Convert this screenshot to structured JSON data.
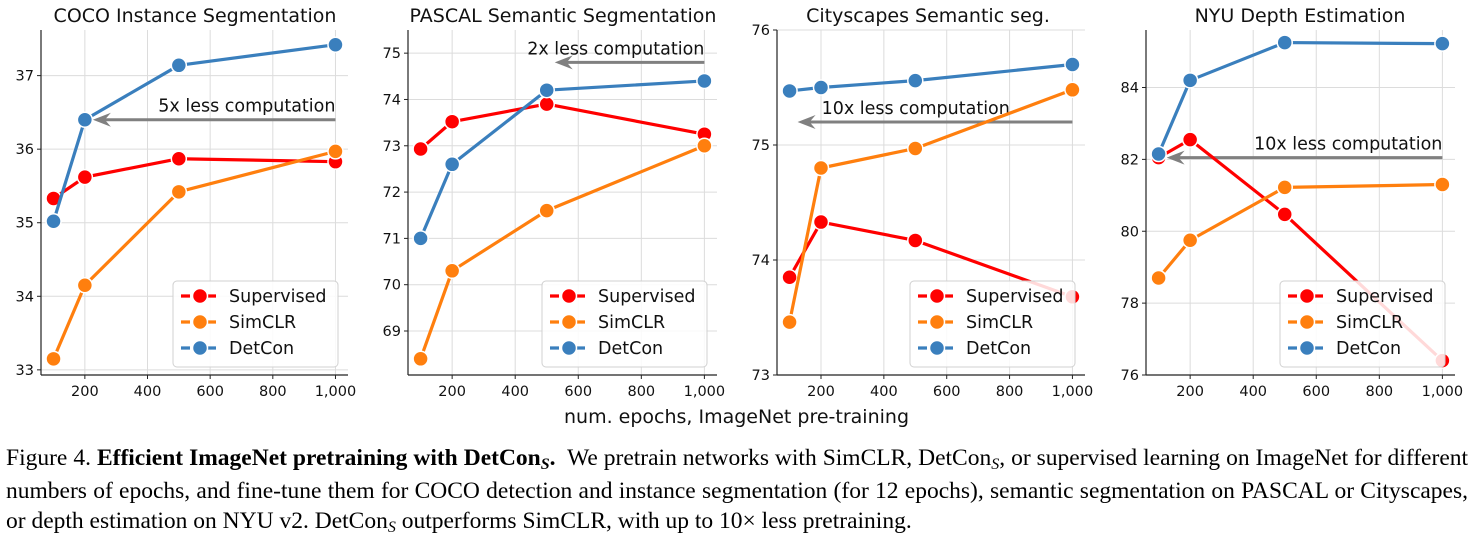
{
  "chart_data": [
    {
      "type": "line",
      "title": "COCO Instance Segmentation",
      "xlabel": "",
      "ylabel": "",
      "x": [
        100,
        200,
        500,
        1000
      ],
      "xticks": [
        200,
        400,
        600,
        800,
        1000
      ],
      "xtick_labels": [
        "200",
        "400",
        "600",
        "800",
        "1,000"
      ],
      "xlim": [
        60,
        1040
      ],
      "ylim": [
        32.93,
        37.62
      ],
      "yticks": [
        33,
        34,
        35,
        36,
        37
      ],
      "ytick_labels": [
        "33",
        "34",
        "35",
        "36",
        "37"
      ],
      "grid": true,
      "legend": "bottom-right",
      "series": [
        {
          "name": "Supervised",
          "color": "#ff0000",
          "values": [
            35.33,
            35.62,
            35.87,
            35.83
          ]
        },
        {
          "name": "SimCLR",
          "color": "#ff7f0e",
          "values": [
            33.15,
            34.15,
            35.42,
            35.97
          ]
        },
        {
          "name": "DetCon",
          "color": "#3a7fbd",
          "values": [
            35.02,
            36.4,
            37.14,
            37.42
          ]
        }
      ],
      "annotation": {
        "text": "5x less computation",
        "arrow_from": [
          1000,
          36.4
        ],
        "arrow_to": [
          200,
          36.4
        ]
      }
    },
    {
      "type": "line",
      "title": "PASCAL Semantic Segmentation",
      "xlabel": "",
      "ylabel": "",
      "x": [
        100,
        200,
        500,
        1000
      ],
      "xticks": [
        200,
        400,
        600,
        800,
        1000
      ],
      "xtick_labels": [
        "200",
        "400",
        "600",
        "800",
        "1,000"
      ],
      "xlim": [
        60,
        1040
      ],
      "ylim": [
        68.05,
        75.5
      ],
      "yticks": [
        69,
        70,
        71,
        72,
        73,
        74,
        75
      ],
      "ytick_labels": [
        "69",
        "70",
        "71",
        "72",
        "73",
        "74",
        "75"
      ],
      "grid": true,
      "legend": "bottom-right",
      "series": [
        {
          "name": "Supervised",
          "color": "#ff0000",
          "values": [
            72.93,
            73.52,
            73.9,
            73.25
          ]
        },
        {
          "name": "SimCLR",
          "color": "#ff7f0e",
          "values": [
            68.4,
            70.3,
            71.6,
            73.0
          ]
        },
        {
          "name": "DetCon",
          "color": "#3a7fbd",
          "values": [
            71.0,
            72.6,
            74.2,
            74.4
          ]
        }
      ],
      "annotation": {
        "text": "2x less computation",
        "arrow_from": [
          1000,
          74.8
        ],
        "arrow_to": [
          500,
          74.8
        ]
      }
    },
    {
      "type": "line",
      "title": "Cityscapes Semantic seg.",
      "xlabel": "",
      "ylabel": "",
      "x": [
        100,
        200,
        500,
        1000
      ],
      "xticks": [
        200,
        400,
        600,
        800,
        1000
      ],
      "xtick_labels": [
        "200",
        "400",
        "600",
        "800",
        "1,000"
      ],
      "xlim": [
        60,
        1040
      ],
      "ylim": [
        73,
        76
      ],
      "yticks": [
        73,
        74,
        75,
        76
      ],
      "ytick_labels": [
        "73",
        "74",
        "75",
        "76"
      ],
      "grid": true,
      "legend": "bottom-right",
      "series": [
        {
          "name": "Supervised",
          "color": "#ff0000",
          "values": [
            73.85,
            74.33,
            74.17,
            73.68
          ]
        },
        {
          "name": "SimCLR",
          "color": "#ff7f0e",
          "values": [
            73.46,
            74.8,
            74.97,
            75.48
          ]
        },
        {
          "name": "DetCon",
          "color": "#3a7fbd",
          "values": [
            75.47,
            75.5,
            75.56,
            75.7
          ]
        }
      ],
      "annotation": {
        "text": "10x less computation",
        "arrow_from": [
          1000,
          75.2
        ],
        "arrow_to": [
          100,
          75.2
        ]
      }
    },
    {
      "type": "line",
      "title": "NYU Depth Estimation",
      "xlabel": "",
      "ylabel": "",
      "x": [
        100,
        200,
        500,
        1000
      ],
      "xticks": [
        200,
        400,
        600,
        800,
        1000
      ],
      "xtick_labels": [
        "200",
        "400",
        "600",
        "800",
        "1,000"
      ],
      "xlim": [
        60,
        1040
      ],
      "ylim": [
        76,
        85.6
      ],
      "yticks": [
        76,
        78,
        80,
        82,
        84
      ],
      "ytick_labels": [
        "76",
        "78",
        "80",
        "82",
        "84"
      ],
      "grid": true,
      "legend": "bottom-right",
      "series": [
        {
          "name": "Supervised",
          "color": "#ff0000",
          "values": [
            82.05,
            82.55,
            80.47,
            76.4
          ]
        },
        {
          "name": "SimCLR",
          "color": "#ff7f0e",
          "values": [
            78.7,
            79.75,
            81.22,
            81.3
          ]
        },
        {
          "name": "DetCon",
          "color": "#3a7fbd",
          "values": [
            82.15,
            84.2,
            85.25,
            85.22
          ]
        }
      ],
      "annotation": {
        "text": "10x less computation",
        "arrow_from": [
          1000,
          82.05
        ],
        "arrow_to": [
          100,
          82.05
        ]
      }
    }
  ],
  "figure": {
    "common_xlabel": "num. epochs, ImageNet pre-training",
    "caption": {
      "label": "Figure 4.",
      "bold_title": "Efficient ImageNet pretraining with DetCon",
      "bold_sub": "S",
      "bold_end": ".",
      "part1": "We pretrain networks with SimCLR, DetCon",
      "sub1": "S",
      "part2": ", or supervised learning on ImageNet for different numbers of epochs, and fine-tune them for COCO detection and instance segmentation (for 12 epochs), semantic segmentation on PASCAL or Cityscapes, or depth estimation on NYU v2. DetCon",
      "sub2": "S",
      "part3": " outperforms SimCLR, with up to 10× less pretraining."
    }
  }
}
